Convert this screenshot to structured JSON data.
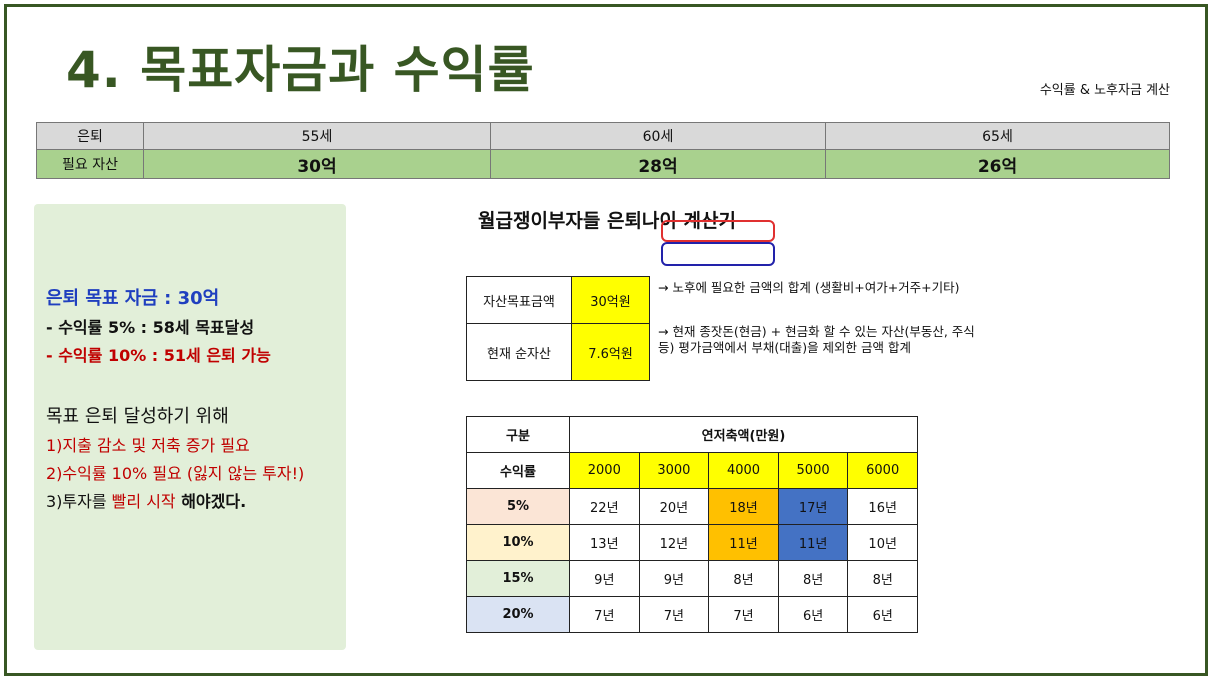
{
  "page": {
    "title": "4. 목표자금과 수익률",
    "subtitle": "수익률 & 노후자금 계산"
  },
  "retire_table": {
    "header_label": "은퇴",
    "ages": [
      "55세",
      "60세",
      "65세"
    ],
    "row_label": "필요 자산",
    "amounts": [
      "30억",
      "28억",
      "26억"
    ]
  },
  "summary": {
    "goal": "은퇴 목표 자금 : 30억",
    "line1": "- 수익률 5% : 58세 목표달성",
    "line2": "- 수익률 10% : 51세 은퇴 가능",
    "heading": "목표 은퇴 달성하기 위해",
    "steps": [
      "1)지출 감소 및 저축 증가 필요",
      "2)수익률 10% 필요 (잃지 않는 투자!)"
    ],
    "step3_pre": "3)투자를 ",
    "step3_hl": "빨리 시작",
    "step3_post": " 해야겠다."
  },
  "calculator": {
    "title": "월급쟁이부자들 은퇴나이 계산기",
    "rows": [
      {
        "label": "자산목표금액",
        "value": "30억원",
        "note": "→ 노후에 필요한 금액의 합계 (생활비+여가+거주+기타)"
      },
      {
        "label": "현재 순자산",
        "value": "7.6억원",
        "note": "→ 현재 종잣돈(현금) + 현금화 할 수 있는 자산(부동산, 주식 등) 평가금액에서 부채(대출)을 제외한 금액 합계"
      }
    ]
  },
  "savings_table": {
    "corner": "구분",
    "group_header": "연저축액(만원)",
    "rate_header": "수익률",
    "amounts": [
      "2000",
      "3000",
      "4000",
      "5000",
      "6000"
    ],
    "rows": [
      {
        "rate": "5%",
        "color": "#fbe5d6",
        "years": [
          "22년",
          "20년",
          "18년",
          "17년",
          "16년"
        ]
      },
      {
        "rate": "10%",
        "color": "#fff2cc",
        "years": [
          "13년",
          "12년",
          "11년",
          "11년",
          "10년"
        ]
      },
      {
        "rate": "15%",
        "color": "#e2efd9",
        "years": [
          "9년",
          "9년",
          "8년",
          "8년",
          "8년"
        ]
      },
      {
        "rate": "20%",
        "color": "#dae3f3",
        "years": [
          "7년",
          "7년",
          "7년",
          "6년",
          "6년"
        ]
      }
    ],
    "highlight_colors": {
      "col4000": "#ffc000",
      "col5000": "#4472c4"
    }
  }
}
